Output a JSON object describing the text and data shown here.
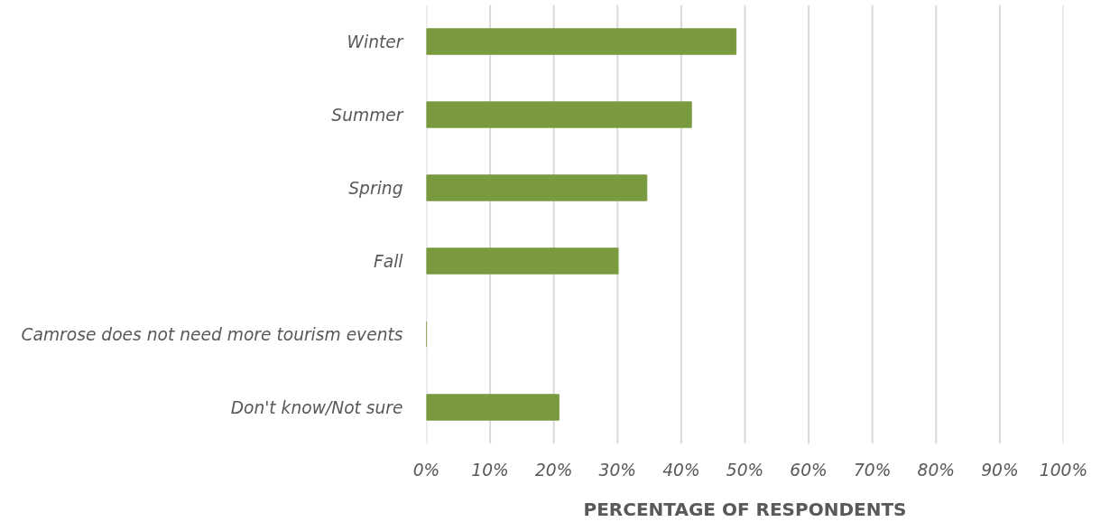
{
  "chart_data": {
    "type": "bar",
    "orientation": "horizontal",
    "xlabel": "PERCENTAGE OF RESPONDENTS",
    "categories": [
      "Winter",
      "Summer",
      "Spring",
      "Fall",
      "Camrose does not need more tourism events",
      "Don't know/Not sure"
    ],
    "values": [
      48.6,
      41.6,
      34.6,
      30.1,
      0,
      20.8
    ],
    "color": "#7a9a3f",
    "xlim": [
      0,
      100
    ],
    "xticks": [
      {
        "value": 0,
        "label": "0%"
      },
      {
        "value": 10,
        "label": "10%"
      },
      {
        "value": 20,
        "label": "20%"
      },
      {
        "value": 30,
        "label": "30%"
      },
      {
        "value": 40,
        "label": "40%"
      },
      {
        "value": 50,
        "label": "50%"
      },
      {
        "value": 60,
        "label": "60%"
      },
      {
        "value": 70,
        "label": "70%"
      },
      {
        "value": 80,
        "label": "80%"
      },
      {
        "value": 90,
        "label": "90%"
      },
      {
        "value": 100,
        "label": "100%"
      }
    ],
    "grid": "x"
  }
}
